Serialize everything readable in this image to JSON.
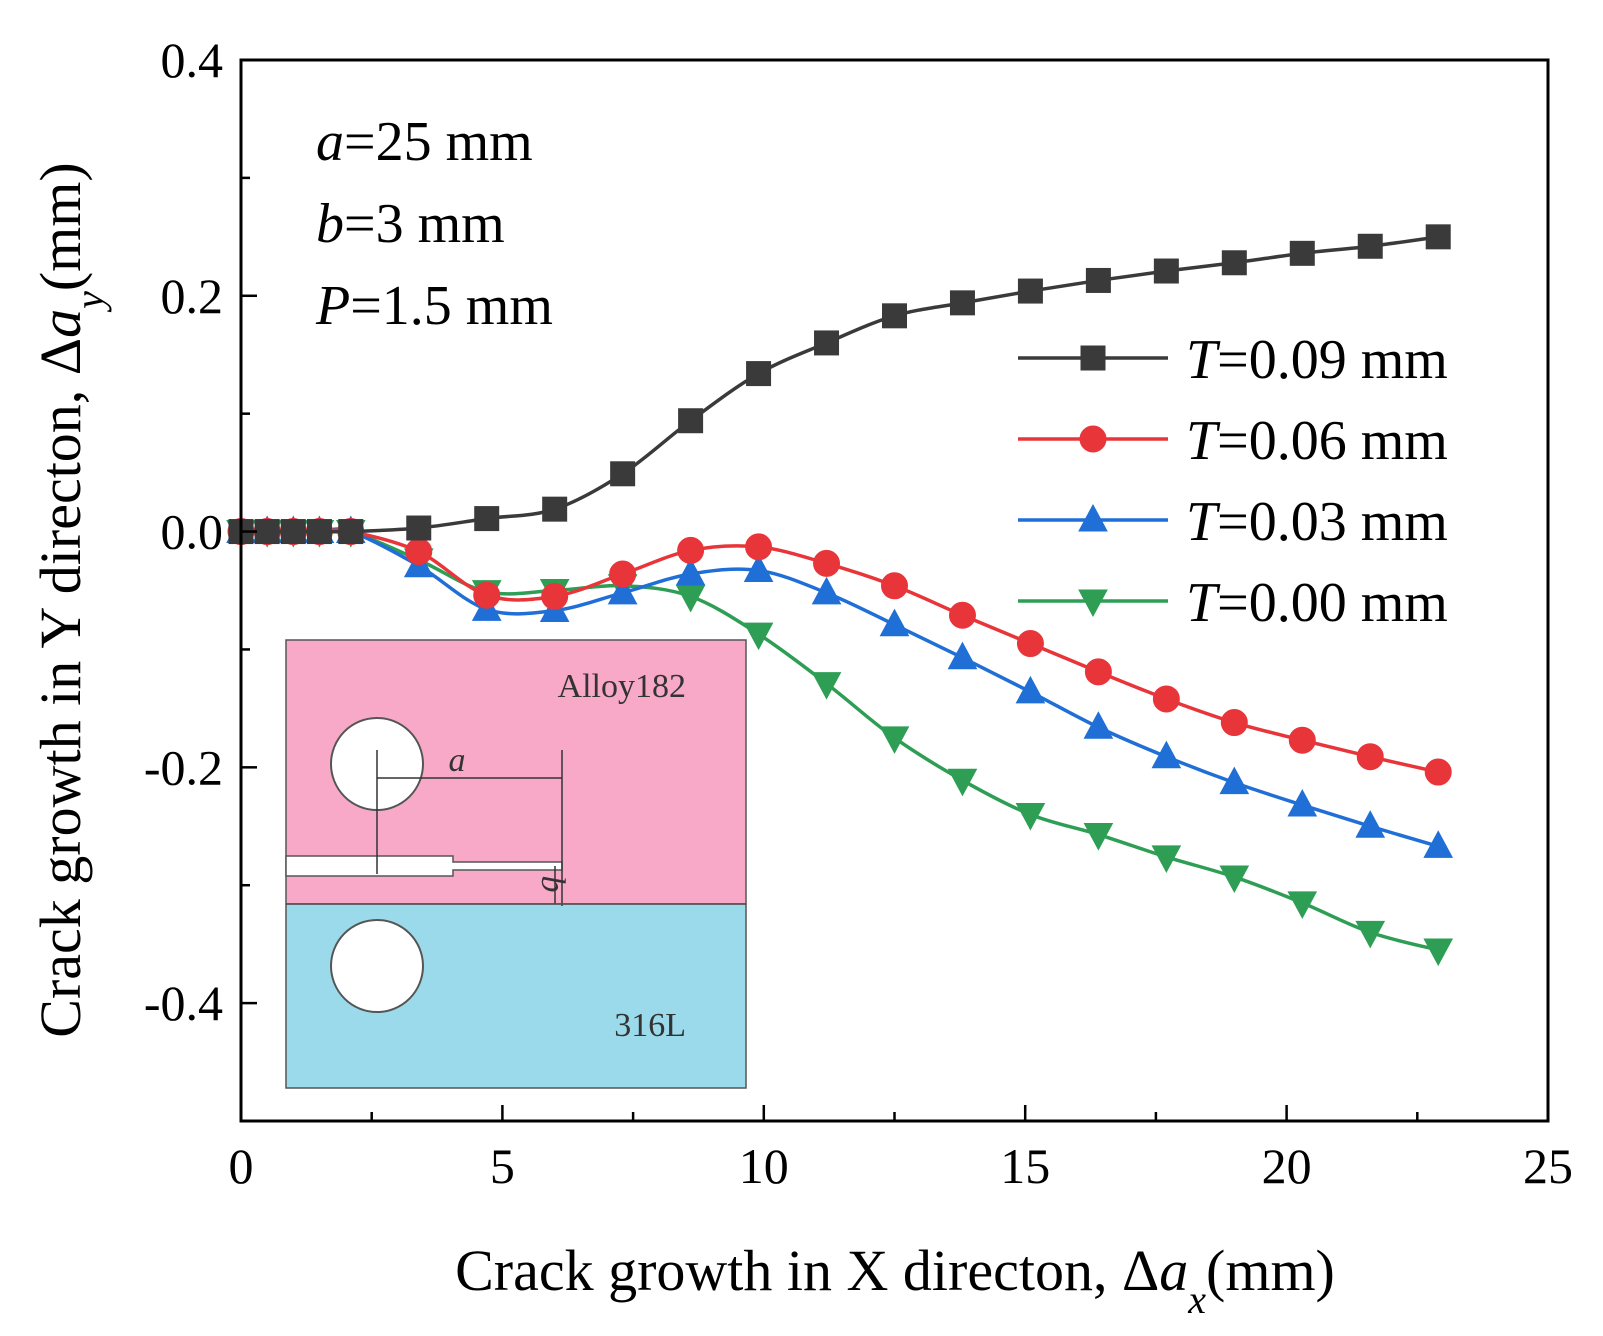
{
  "chart_data": {
    "type": "line",
    "xlabel": "Crack growth in X directon, Δa_x(mm)",
    "ylabel": "Crack growth in Y directon, Δa_y(mm)",
    "xlabel_parts": {
      "pre": "Crack growth in X directon, Δ",
      "var": "a",
      "sub": "x",
      "post": "(mm)"
    },
    "ylabel_parts": {
      "pre": "Crack growth in Y directon, Δ",
      "var": "a",
      "sub": "y",
      "post": "(mm)"
    },
    "xlim": [
      0,
      25
    ],
    "ylim": [
      -0.5,
      0.4
    ],
    "xticks": [
      0,
      5,
      10,
      15,
      20,
      25
    ],
    "xtick_labels": [
      "0",
      "5",
      "10",
      "15",
      "20",
      "25"
    ],
    "yticks": [
      0.4,
      0.2,
      0.0,
      -0.2,
      -0.4
    ],
    "ytick_labels": [
      "0.4",
      "0.2",
      "0.0",
      "-0.2",
      "-0.4"
    ],
    "grid": false,
    "legend_position": "right",
    "parameters": [
      {
        "var": "a",
        "rest": "=25 mm"
      },
      {
        "var": "b",
        "rest": "=3 mm"
      },
      {
        "var": "P",
        "rest": "=1.5 mm"
      }
    ],
    "series": [
      {
        "name": "T=0.09 mm",
        "legend_var": "T",
        "legend_rest": "=0.09 mm",
        "color": "#3a3a3a",
        "marker": "square",
        "x": [
          0.0,
          0.5,
          1.0,
          1.5,
          2.1,
          3.4,
          4.7,
          6.0,
          7.3,
          8.6,
          9.9,
          11.2,
          12.5,
          13.8,
          15.1,
          16.4,
          17.7,
          19.0,
          20.3,
          21.6,
          22.9
        ],
        "y": [
          0.0,
          0.0,
          0.0,
          0.0,
          0.0,
          0.003,
          0.011,
          0.019,
          0.049,
          0.094,
          0.134,
          0.16,
          0.183,
          0.194,
          0.204,
          0.213,
          0.221,
          0.228,
          0.236,
          0.242,
          0.25
        ]
      },
      {
        "name": "T=0.06 mm",
        "legend_var": "T",
        "legend_rest": "=0.06 mm",
        "color": "#e8353a",
        "marker": "circle",
        "x": [
          0.0,
          0.5,
          1.0,
          1.5,
          2.1,
          3.4,
          4.7,
          6.0,
          7.3,
          8.6,
          9.9,
          11.2,
          12.5,
          13.8,
          15.1,
          16.4,
          17.7,
          19.0,
          20.3,
          21.6,
          22.9
        ],
        "y": [
          0.0,
          0.0,
          0.0,
          0.0,
          0.0,
          -0.017,
          -0.054,
          -0.055,
          -0.036,
          -0.016,
          -0.013,
          -0.027,
          -0.046,
          -0.071,
          -0.095,
          -0.119,
          -0.142,
          -0.162,
          -0.177,
          -0.191,
          -0.204
        ]
      },
      {
        "name": "T=0.03 mm",
        "legend_var": "T",
        "legend_rest": "=0.03 mm",
        "color": "#1f6fd6",
        "marker": "triangle-up",
        "x": [
          0.0,
          0.5,
          1.0,
          1.5,
          2.1,
          3.4,
          4.7,
          6.0,
          7.3,
          8.6,
          9.9,
          11.2,
          12.5,
          13.8,
          15.1,
          16.4,
          17.7,
          19.0,
          20.3,
          21.6,
          22.9
        ],
        "y": [
          0.0,
          0.0,
          0.0,
          0.0,
          0.0,
          -0.029,
          -0.066,
          -0.067,
          -0.052,
          -0.036,
          -0.033,
          -0.052,
          -0.079,
          -0.107,
          -0.136,
          -0.166,
          -0.191,
          -0.213,
          -0.232,
          -0.25,
          -0.267
        ]
      },
      {
        "name": "T=0.00 mm",
        "legend_var": "T",
        "legend_rest": "=0.00 mm",
        "color": "#2e9e55",
        "marker": "triangle-down",
        "x": [
          0.0,
          0.5,
          1.0,
          1.5,
          2.1,
          3.4,
          4.7,
          6.0,
          7.3,
          8.6,
          9.9,
          11.2,
          12.5,
          13.8,
          15.1,
          16.4,
          17.7,
          19.0,
          20.3,
          21.6,
          22.9
        ],
        "y": [
          0.0,
          0.0,
          0.0,
          0.0,
          0.0,
          -0.024,
          -0.051,
          -0.05,
          -0.046,
          -0.055,
          -0.087,
          -0.129,
          -0.175,
          -0.211,
          -0.24,
          -0.257,
          -0.276,
          -0.293,
          -0.315,
          -0.34,
          -0.355
        ]
      }
    ],
    "inset": {
      "top_material": "Alloy182",
      "bottom_material": "316L",
      "dim_a": "a",
      "dim_b": "b",
      "top_color": "#f9a9c8",
      "bottom_color": "#9bdaea"
    }
  }
}
